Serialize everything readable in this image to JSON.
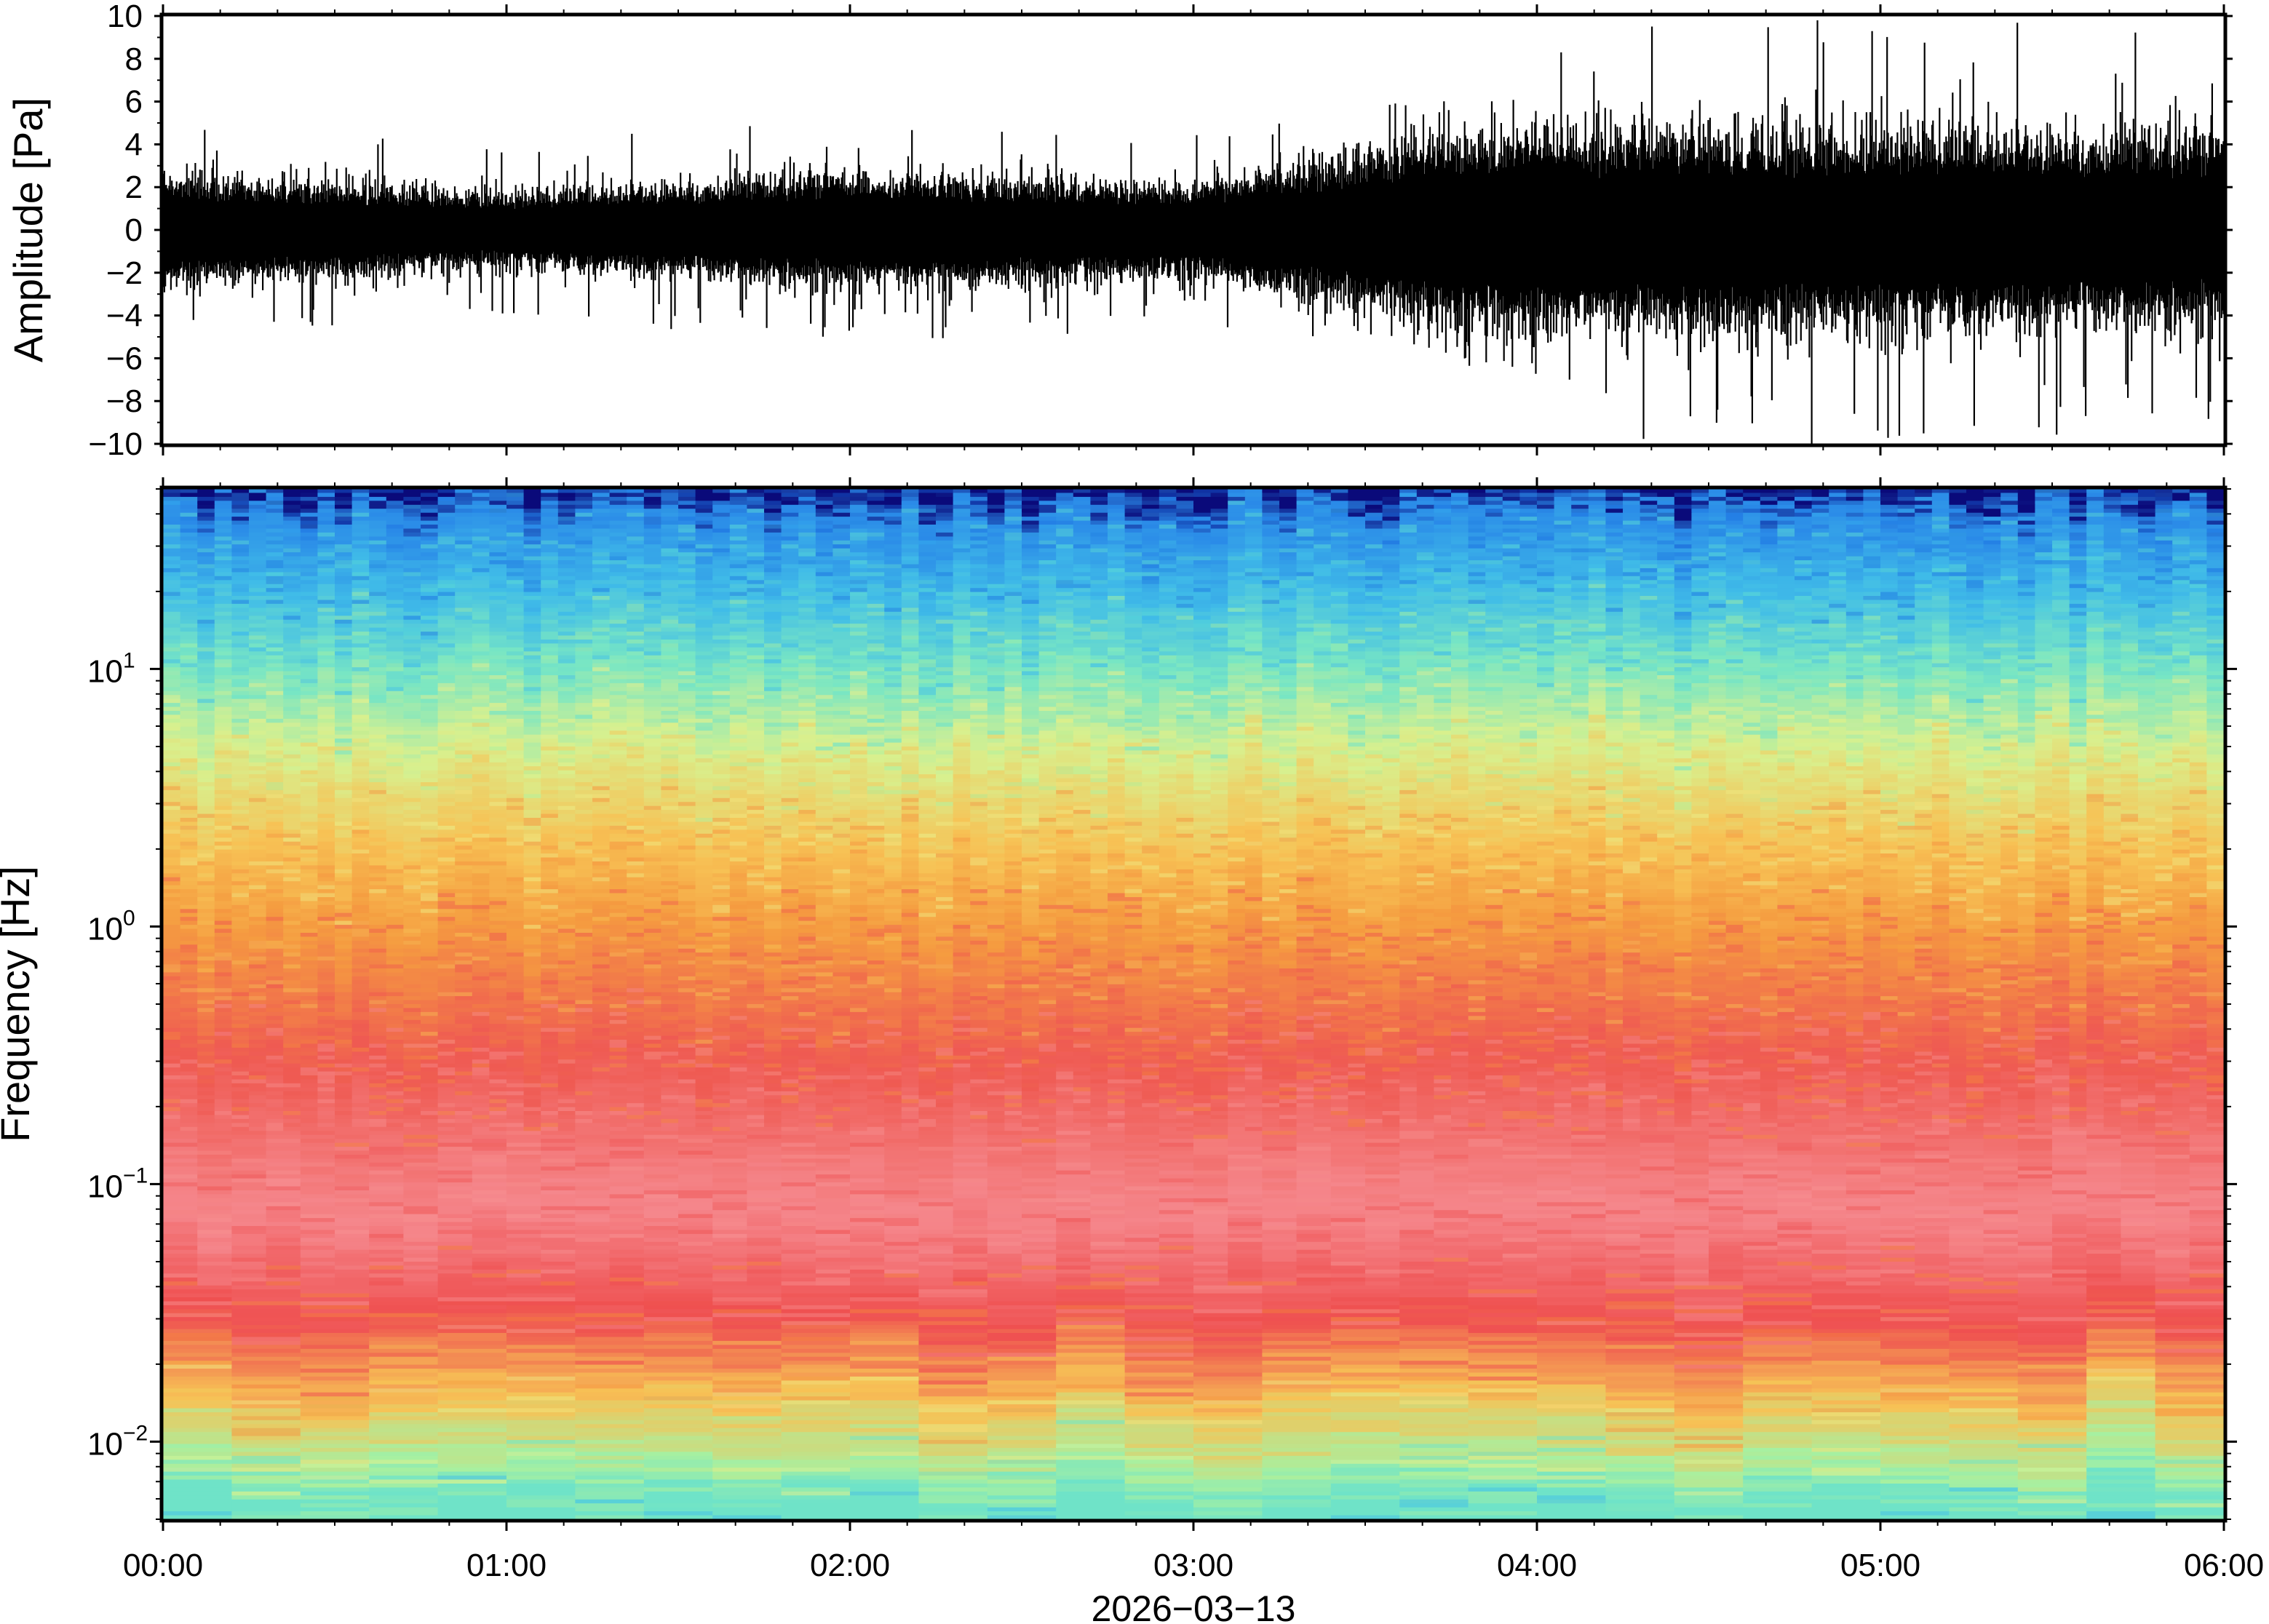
{
  "chart_data": [
    {
      "type": "line",
      "panel": "waveform",
      "title": "",
      "ylabel": "Amplitude [Pa]",
      "ylim": [
        -10,
        10
      ],
      "yticks": [
        10,
        8,
        6,
        4,
        2,
        0,
        -2,
        -4,
        -6,
        -8,
        -10
      ],
      "ytick_labels": [
        "10",
        "8",
        "6",
        "4",
        "2",
        "0",
        "−2",
        "−4",
        "−6",
        "−8",
        "−10"
      ],
      "xlim": [
        "00:00",
        "06:00"
      ],
      "grid": false,
      "envelope_hourly": [
        {
          "time": "00:00",
          "typical": 1.8,
          "peak": 5.0
        },
        {
          "time": "01:00",
          "typical": 1.2,
          "peak": 4.0
        },
        {
          "time": "02:00",
          "typical": 1.8,
          "peak": 5.5
        },
        {
          "time": "03:00",
          "typical": 1.5,
          "peak": 4.5
        },
        {
          "time": "04:00",
          "typical": 3.5,
          "peak": 7.5
        },
        {
          "time": "05:00",
          "typical": 3.2,
          "peak": 10.0
        },
        {
          "time": "06:00",
          "typical": 3.0,
          "peak": 9.5
        }
      ],
      "notable_values": {
        "min": -10,
        "min_time": "04:48",
        "max": 9.8,
        "max_time": "04:49"
      }
    },
    {
      "type": "heatmap",
      "panel": "spectrogram",
      "title": "",
      "ylabel": "Frequency [Hz]",
      "yscale": "log",
      "ylim": [
        0.005,
        50
      ],
      "yticks": [
        0.01,
        0.1,
        1,
        10
      ],
      "ytick_labels": [
        {
          "base": "10",
          "exp": "−2"
        },
        {
          "base": "10",
          "exp": "−1"
        },
        {
          "base": "10",
          "exp": "0"
        },
        {
          "base": "10",
          "exp": "1"
        }
      ],
      "xticks": [
        "00:00",
        "01:00",
        "02:00",
        "03:00",
        "04:00",
        "05:00",
        "06:00"
      ],
      "xlabel": "2026−03−13",
      "colormap": [
        "#0a0a7a",
        "#1a6fe0",
        "#38b6f0",
        "#5fe0d2",
        "#a8f0a0",
        "#eef08a",
        "#f7c255",
        "#f58c3c",
        "#ef5050",
        "#f79191"
      ],
      "power_profile": [
        {
          "freq": 50,
          "color": "#0a0a7a"
        },
        {
          "freq": 40,
          "color": "#2a8ae8"
        },
        {
          "freq": 20,
          "color": "#40bce8"
        },
        {
          "freq": 10,
          "color": "#78e6c4"
        },
        {
          "freq": 5,
          "color": "#d8f08e"
        },
        {
          "freq": 2,
          "color": "#f7c255"
        },
        {
          "freq": 1,
          "color": "#f59c40"
        },
        {
          "freq": 0.3,
          "color": "#ef5a52"
        },
        {
          "freq": 0.08,
          "color": "#f5878c"
        },
        {
          "freq": 0.03,
          "color": "#ef5050"
        },
        {
          "freq": 0.015,
          "color": "#f7c255"
        },
        {
          "freq": 0.008,
          "color": "#a8f0a0"
        },
        {
          "freq": 0.006,
          "color": "#6fe3c8"
        }
      ],
      "grid": false
    }
  ]
}
